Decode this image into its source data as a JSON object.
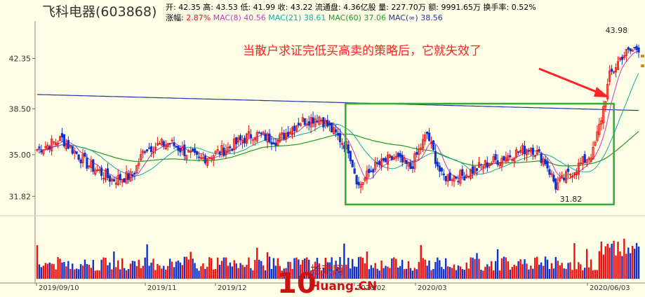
{
  "stock": {
    "name": "飞科电器",
    "code": "(603868)"
  },
  "quote": {
    "open_label": "开:",
    "open": "42.35",
    "high_label": "高:",
    "high": "43.53",
    "low_label": "低:",
    "low": "41.99",
    "close_label": "收:",
    "close": "43.22",
    "float_label": "流通盘:",
    "float": "4.36亿股",
    "volume_label": "量:",
    "volume": "227.70万",
    "amount_label": "额:",
    "amount": "9991.65万",
    "turnover_label": "换手率:",
    "turnover": "0.52%"
  },
  "indicators": {
    "change_label": "涨幅:",
    "change": "2.87%",
    "ma8_label": "MAC(8)",
    "ma8": "40.56",
    "ma21_label": "MAC(21)",
    "ma21": "38.61",
    "ma60_label": "MAC(60)",
    "ma60": "37.06",
    "mainf_label": "MAC(∞)",
    "mainf": "38.56"
  },
  "annotation": "当散户求证完低买高卖的策略后，它就失效了",
  "watermark": {
    "num": "10",
    "cn": "拾荒网",
    "url": "Huang.CN"
  },
  "chart_data": {
    "type": "candlestick",
    "yticks": [
      "42.35",
      "38.50",
      "35.00",
      "31.82"
    ],
    "xticks": [
      "2019/09/10",
      "2019/11",
      "2019/12",
      "2020/02",
      "2020/03",
      "2020/06/03"
    ],
    "max_label": "43.98",
    "min_label": "31.82",
    "price_range": [
      30.5,
      45.0
    ],
    "anchors": [
      [
        0,
        35.4
      ],
      [
        12,
        36.2
      ],
      [
        24,
        34.3
      ],
      [
        36,
        33.1
      ],
      [
        46,
        33.4
      ],
      [
        52,
        35.5
      ],
      [
        64,
        35.9
      ],
      [
        78,
        34.6
      ],
      [
        92,
        35.5
      ],
      [
        104,
        36.6
      ],
      [
        116,
        36.1
      ],
      [
        126,
        37.5
      ],
      [
        136,
        37.9
      ],
      [
        150,
        35.5
      ],
      [
        155,
        32.6
      ],
      [
        162,
        34.0
      ],
      [
        172,
        34.8
      ],
      [
        180,
        34.0
      ],
      [
        188,
        36.6
      ],
      [
        195,
        33.3
      ],
      [
        205,
        33.4
      ],
      [
        215,
        34.2
      ],
      [
        225,
        34.8
      ],
      [
        238,
        35.6
      ],
      [
        245,
        34.5
      ],
      [
        250,
        32.6
      ],
      [
        262,
        34.3
      ],
      [
        268,
        35.2
      ],
      [
        272,
        37.8
      ],
      [
        276,
        41.0
      ],
      [
        282,
        42.6
      ],
      [
        290,
        43.2
      ]
    ],
    "bars": 291,
    "colors": {
      "up": "#ee1111",
      "down": "#1133cc",
      "ma_short": "#cc33cc",
      "ma_mid": "#11aaaa",
      "ma_long": "#229922",
      "ma_flat": "#2233aa",
      "annotation": "#ff2222",
      "box": "#33aa33"
    }
  }
}
